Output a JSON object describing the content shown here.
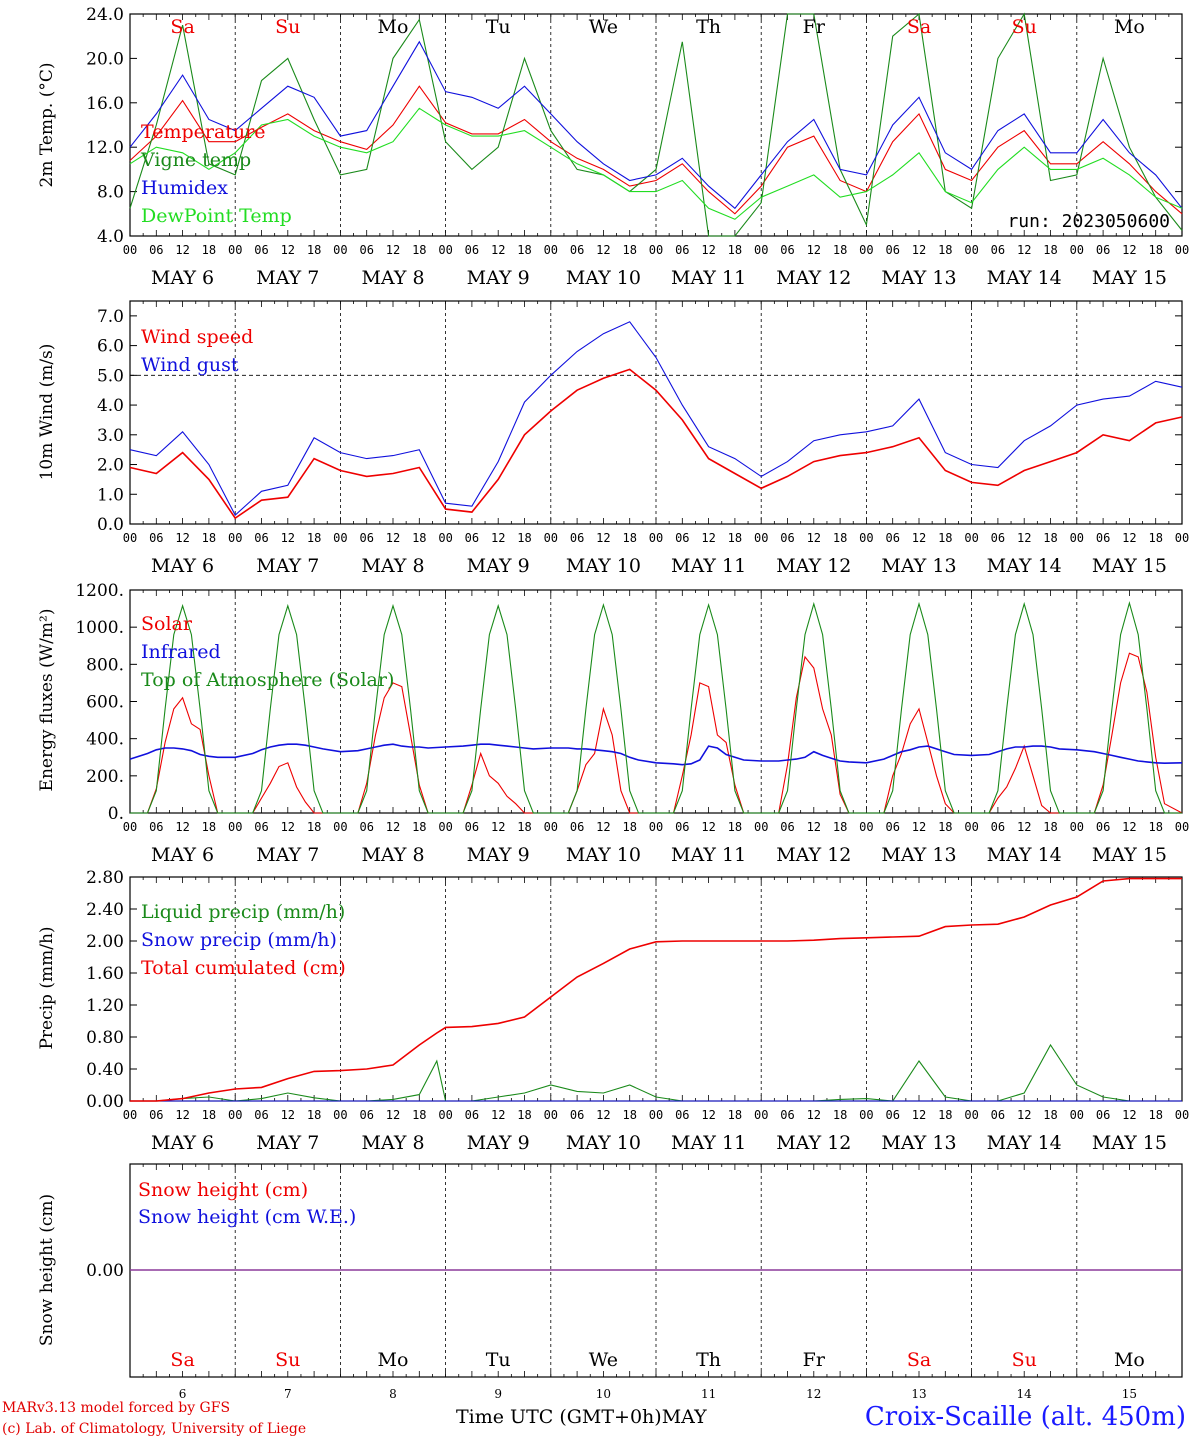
{
  "meteogram": {
    "run_label": "run: 2023050600",
    "station": "Croix-Scaille (alt. 450m)",
    "credit_line1": "MARv3.13 model forced by GFS",
    "credit_line2": "(c) Lab. of Climatology, University of Liege",
    "x_axis_title": "Time UTC (GMT+0h)",
    "month": "MAY"
  },
  "colors": {
    "red": "#ee0000",
    "green": "#1a8a1a",
    "blue": "#1010dd",
    "lightgreen": "#22dd22",
    "purple": "#8b3a9a",
    "weekend": "#ee0000"
  },
  "chart_data": [
    {
      "type": "line",
      "ylabel": "2m Temp. (°C)",
      "ylim": [
        4,
        24
      ],
      "yticks": [
        "4.0",
        "8.0",
        "12.0",
        "16.0",
        "20.0",
        "24.0"
      ],
      "day_labels": [
        "Sa",
        "Su",
        "Mo",
        "Tu",
        "We",
        "Th",
        "Fr",
        "Sa",
        "Su",
        "Mo"
      ],
      "x_hour_ticks": [
        "00",
        "06",
        "12",
        "18"
      ],
      "date_labels": [
        "MAY  6",
        "MAY  7",
        "MAY  8",
        "MAY  9",
        "MAY 10",
        "MAY 11",
        "MAY 12",
        "MAY 13",
        "MAY 14",
        "MAY 15"
      ],
      "x": [
        0,
        6,
        12,
        18,
        24,
        30,
        36,
        42,
        48,
        54,
        60,
        66,
        72,
        78,
        84,
        90,
        96,
        102,
        108,
        114,
        120,
        126,
        132,
        138,
        144,
        150,
        156,
        162,
        168,
        174,
        180,
        186,
        192,
        198,
        204,
        210,
        216,
        222,
        228,
        234,
        240
      ],
      "series": [
        {
          "name": "Temperature",
          "color": "#ee0000",
          "values": [
            10.8,
            13.0,
            16.2,
            12.5,
            12.5,
            13.8,
            15.0,
            13.5,
            12.5,
            11.8,
            14.0,
            17.5,
            14.2,
            13.2,
            13.2,
            14.5,
            12.5,
            11.0,
            10.0,
            8.5,
            9.0,
            10.5,
            8.0,
            6.0,
            8.5,
            12.0,
            13.0,
            9.0,
            8.0,
            12.5,
            15.0,
            10.0,
            9.0,
            12.0,
            13.5,
            10.5,
            10.5,
            12.5,
            10.5,
            8.0,
            6.0
          ]
        },
        {
          "name": "Vigne temp",
          "color": "#1a8a1a",
          "values": [
            6.5,
            14.0,
            23.0,
            10.5,
            9.5,
            18.0,
            20.0,
            14.5,
            9.5,
            10.0,
            20.0,
            23.5,
            12.5,
            10.0,
            12.0,
            20.0,
            13.5,
            10.0,
            9.5,
            8.0,
            10.0,
            21.5,
            4.0,
            4.0,
            7.0,
            24.0,
            24.0,
            10.0,
            5.0,
            22.0,
            24.0,
            8.0,
            6.5,
            20.0,
            24.0,
            9.0,
            9.5,
            20.0,
            12.0,
            7.5,
            4.5
          ]
        },
        {
          "name": "Humidex",
          "color": "#1010dd",
          "values": [
            12.0,
            15.0,
            18.5,
            14.5,
            13.5,
            15.5,
            17.5,
            16.5,
            13.0,
            13.5,
            17.5,
            21.5,
            17.0,
            16.5,
            15.5,
            17.5,
            15.0,
            12.5,
            10.5,
            9.0,
            9.5,
            11.0,
            8.5,
            6.5,
            9.5,
            12.5,
            14.5,
            10.0,
            9.5,
            14.0,
            16.5,
            11.5,
            10.0,
            13.5,
            15.0,
            11.5,
            11.5,
            14.5,
            11.5,
            9.5,
            6.5
          ]
        },
        {
          "name": "DewPoint Temp",
          "color": "#22dd22",
          "values": [
            10.5,
            12.0,
            11.5,
            10.0,
            11.5,
            14.0,
            14.5,
            13.0,
            12.0,
            11.5,
            12.5,
            15.5,
            14.0,
            13.0,
            13.0,
            13.5,
            12.0,
            10.5,
            9.5,
            8.0,
            8.0,
            9.0,
            6.5,
            5.5,
            7.5,
            8.5,
            9.5,
            7.5,
            8.0,
            9.5,
            11.5,
            8.0,
            7.0,
            10.0,
            12.0,
            10.0,
            10.0,
            11.0,
            9.5,
            7.5,
            6.5
          ]
        }
      ]
    },
    {
      "type": "line",
      "ylabel": "10m Wind (m/s)",
      "ylim": [
        0,
        7.5
      ],
      "yticks": [
        "0.0",
        "1.0",
        "2.0",
        "3.0",
        "4.0",
        "5.0",
        "6.0",
        "7.0"
      ],
      "reference_line": 5.0,
      "date_labels": [
        "MAY  6",
        "MAY  7",
        "MAY  8",
        "MAY  9",
        "MAY 10",
        "MAY 11",
        "MAY 12",
        "MAY 13",
        "MAY 14",
        "MAY 15"
      ],
      "x": [
        0,
        6,
        12,
        18,
        24,
        30,
        36,
        42,
        48,
        54,
        60,
        66,
        72,
        78,
        84,
        90,
        96,
        102,
        108,
        114,
        120,
        126,
        132,
        138,
        144,
        150,
        156,
        162,
        168,
        174,
        180,
        186,
        192,
        198,
        204,
        210,
        216,
        222,
        228,
        234,
        240
      ],
      "series": [
        {
          "name": "Wind speed",
          "color": "#ee0000",
          "values": [
            1.9,
            1.7,
            2.4,
            1.5,
            0.2,
            0.8,
            0.9,
            2.2,
            1.8,
            1.6,
            1.7,
            1.9,
            0.5,
            0.4,
            1.5,
            3.0,
            3.8,
            4.5,
            4.9,
            5.2,
            4.5,
            3.5,
            2.2,
            1.7,
            1.2,
            1.6,
            2.1,
            2.3,
            2.4,
            2.6,
            2.9,
            1.8,
            1.4,
            1.3,
            1.8,
            2.1,
            2.4,
            3.0,
            2.8,
            3.4,
            3.6
          ]
        },
        {
          "name": "Wind gust",
          "color": "#1010dd",
          "values": [
            2.5,
            2.3,
            3.1,
            2.0,
            0.3,
            1.1,
            1.3,
            2.9,
            2.4,
            2.2,
            2.3,
            2.5,
            0.7,
            0.6,
            2.1,
            4.1,
            5.0,
            5.8,
            6.4,
            6.8,
            5.6,
            4.0,
            2.6,
            2.2,
            1.6,
            2.1,
            2.8,
            3.0,
            3.1,
            3.3,
            4.2,
            2.4,
            2.0,
            1.9,
            2.8,
            3.3,
            4.0,
            4.2,
            4.3,
            4.8,
            4.6
          ]
        }
      ]
    },
    {
      "type": "line",
      "ylabel": "Energy fluxes (W/m²)",
      "ylim": [
        0,
        1200
      ],
      "yticks": [
        "0.",
        "200.",
        "400.",
        "600.",
        "800.",
        "1000.",
        "1200."
      ],
      "date_labels": [
        "MAY  6",
        "MAY  7",
        "MAY  8",
        "MAY  9",
        "MAY 10",
        "MAY 11",
        "MAY 12",
        "MAY 13",
        "MAY 14",
        "MAY 15"
      ],
      "x": [
        0,
        4,
        6,
        8,
        10,
        12,
        14,
        16,
        18,
        20,
        24,
        28,
        30,
        32,
        34,
        36,
        38,
        40,
        42,
        44,
        48,
        52,
        54,
        56,
        58,
        60,
        62,
        64,
        66,
        68,
        72,
        76,
        78,
        80,
        82,
        84,
        86,
        88,
        90,
        92,
        96,
        100,
        102,
        104,
        106,
        108,
        110,
        112,
        114,
        116,
        120,
        124,
        126,
        128,
        130,
        132,
        134,
        136,
        138,
        140,
        144,
        148,
        150,
        152,
        154,
        156,
        158,
        160,
        162,
        164,
        168,
        172,
        174,
        176,
        178,
        180,
        182,
        184,
        186,
        188,
        192,
        196,
        198,
        200,
        202,
        204,
        206,
        208,
        210,
        212,
        216,
        220,
        222,
        224,
        226,
        228,
        230,
        232,
        234,
        236,
        240
      ],
      "series": [
        {
          "name": "Solar",
          "color": "#ee0000",
          "values": [
            0,
            0,
            130,
            380,
            560,
            620,
            480,
            450,
            200,
            0,
            0,
            0,
            80,
            160,
            250,
            270,
            140,
            60,
            0,
            0,
            0,
            0,
            160,
            420,
            620,
            700,
            680,
            420,
            150,
            0,
            0,
            0,
            150,
            320,
            200,
            160,
            90,
            50,
            0,
            0,
            0,
            0,
            120,
            260,
            320,
            560,
            420,
            120,
            0,
            0,
            0,
            0,
            200,
            420,
            700,
            680,
            420,
            380,
            150,
            0,
            0,
            0,
            260,
            620,
            840,
            780,
            560,
            420,
            100,
            0,
            0,
            0,
            200,
            320,
            480,
            560,
            380,
            200,
            50,
            0,
            0,
            0,
            80,
            140,
            240,
            360,
            200,
            40,
            0,
            0,
            0,
            0,
            150,
            420,
            700,
            860,
            840,
            650,
            300,
            50,
            0
          ]
        },
        {
          "name": "Infrared",
          "color": "#1010dd",
          "values": [
            290,
            320,
            340,
            350,
            350,
            345,
            335,
            315,
            305,
            300,
            300,
            320,
            340,
            355,
            365,
            370,
            370,
            365,
            355,
            345,
            330,
            335,
            345,
            355,
            365,
            370,
            360,
            355,
            355,
            350,
            355,
            360,
            365,
            370,
            370,
            365,
            360,
            355,
            350,
            345,
            350,
            350,
            345,
            345,
            340,
            335,
            330,
            320,
            300,
            285,
            270,
            265,
            260,
            265,
            285,
            360,
            350,
            315,
            300,
            285,
            280,
            280,
            285,
            290,
            300,
            330,
            310,
            295,
            280,
            275,
            270,
            290,
            310,
            330,
            340,
            355,
            360,
            345,
            330,
            315,
            310,
            315,
            330,
            345,
            355,
            355,
            360,
            360,
            355,
            345,
            340,
            330,
            320,
            310,
            300,
            290,
            280,
            275,
            270,
            268,
            270
          ]
        },
        {
          "name": "Top of Atmosphere (Solar)",
          "color": "#1a8a1a",
          "values": [
            0,
            0,
            120,
            560,
            960,
            1115,
            960,
            560,
            120,
            0,
            0,
            0,
            120,
            560,
            960,
            1115,
            960,
            560,
            120,
            0,
            0,
            0,
            120,
            560,
            960,
            1115,
            960,
            560,
            120,
            0,
            0,
            0,
            120,
            560,
            960,
            1115,
            960,
            560,
            120,
            0,
            0,
            0,
            120,
            560,
            960,
            1120,
            960,
            560,
            120,
            0,
            0,
            0,
            120,
            560,
            960,
            1120,
            960,
            560,
            120,
            0,
            0,
            0,
            120,
            560,
            960,
            1125,
            960,
            560,
            120,
            0,
            0,
            0,
            120,
            560,
            960,
            1125,
            960,
            560,
            120,
            0,
            0,
            0,
            120,
            560,
            960,
            1125,
            960,
            560,
            120,
            0,
            0,
            0,
            120,
            560,
            960,
            1130,
            960,
            560,
            120,
            0,
            0
          ]
        }
      ]
    },
    {
      "type": "line",
      "ylabel": "Precip (mm/h)",
      "ylim": [
        0,
        2.8
      ],
      "yticks": [
        "0.00",
        "0.40",
        "0.80",
        "1.20",
        "1.60",
        "2.00",
        "2.40",
        "2.80"
      ],
      "date_labels": [
        "MAY  6",
        "MAY  7",
        "MAY  8",
        "MAY  9",
        "MAY 10",
        "MAY 11",
        "MAY 12",
        "MAY 13",
        "MAY 14",
        "MAY 15"
      ],
      "x": [
        0,
        6,
        12,
        18,
        24,
        30,
        36,
        42,
        48,
        54,
        60,
        66,
        70,
        72,
        78,
        84,
        90,
        96,
        102,
        108,
        114,
        120,
        126,
        132,
        138,
        144,
        150,
        156,
        162,
        168,
        174,
        180,
        186,
        192,
        198,
        204,
        210,
        216,
        222,
        228,
        234,
        240
      ],
      "series": [
        {
          "name": "Liquid precip (mm/h)",
          "color": "#1a8a1a",
          "values": [
            0,
            0,
            0.03,
            0.05,
            0,
            0.03,
            0.1,
            0.04,
            0,
            0,
            0.02,
            0.08,
            0.5,
            0,
            0,
            0.05,
            0.1,
            0.2,
            0.12,
            0.1,
            0.2,
            0.05,
            0,
            0,
            0,
            0,
            0,
            0,
            0.02,
            0.03,
            0,
            0.5,
            0.05,
            0,
            0,
            0.1,
            0.7,
            0.2,
            0.05,
            0,
            0,
            0
          ]
        },
        {
          "name": "Snow precip (mm/h)",
          "color": "#1010dd",
          "values": [
            0,
            0,
            0,
            0,
            0,
            0,
            0,
            0,
            0,
            0,
            0,
            0,
            0,
            0,
            0,
            0,
            0,
            0,
            0,
            0,
            0,
            0,
            0,
            0,
            0,
            0,
            0,
            0,
            0,
            0,
            0,
            0,
            0,
            0,
            0,
            0,
            0,
            0,
            0,
            0,
            0,
            0
          ]
        },
        {
          "name": "Total cumulated (cm)",
          "color": "#ee0000",
          "values": [
            0,
            0,
            0.03,
            0.1,
            0.15,
            0.17,
            0.28,
            0.37,
            0.38,
            0.4,
            0.45,
            0.7,
            0.85,
            0.92,
            0.93,
            0.97,
            1.05,
            1.3,
            1.55,
            1.72,
            1.9,
            1.99,
            2.0,
            2.0,
            2.0,
            2.0,
            2.0,
            2.01,
            2.03,
            2.04,
            2.05,
            2.06,
            2.18,
            2.2,
            2.21,
            2.3,
            2.45,
            2.55,
            2.75,
            2.78,
            2.78,
            2.78
          ]
        }
      ]
    },
    {
      "type": "line",
      "ylabel": "Snow height (cm)",
      "yticks": [
        "0.00"
      ],
      "day_labels": [
        "Sa",
        "Su",
        "Mo",
        "Tu",
        "We",
        "Th",
        "Fr",
        "Sa",
        "Su",
        "Mo"
      ],
      "day_numbers": [
        "6",
        "7",
        "8",
        "9",
        "10",
        "11",
        "12",
        "13",
        "14",
        "15"
      ],
      "series": [
        {
          "name": "Snow height (cm)",
          "color": "#ee0000",
          "values": [
            0,
            0
          ]
        },
        {
          "name": "Snow height (cm W.E.)",
          "color": "#1010dd",
          "values": [
            0,
            0
          ]
        }
      ]
    }
  ]
}
